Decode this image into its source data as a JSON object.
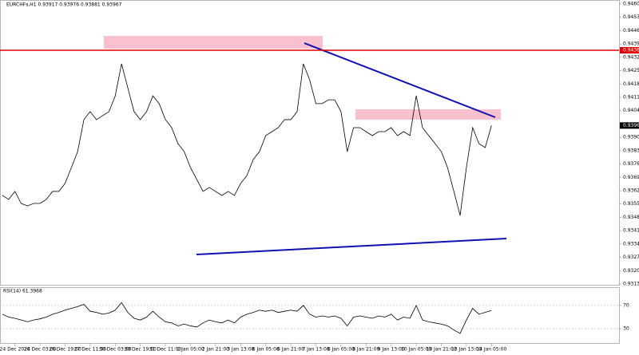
{
  "chart_data": [
    {
      "type": "line",
      "title": "EURCHFs,H1 0.93917 0.93976 0.93881 0.93967",
      "color": "#000000",
      "categories": [
        null,
        null,
        "24 Dec 2024",
        null,
        null,
        null,
        "26 Dec 03:00",
        null,
        null,
        null,
        "26 Dec 19:00",
        null,
        null,
        null,
        "27 Dec 11:00",
        null,
        null,
        null,
        "30 Dec 03:00",
        null,
        null,
        null,
        "30 Dec 19:00",
        null,
        null,
        null,
        "31 Dec 11:00",
        null,
        null,
        null,
        "2 Jan 05:00",
        null,
        null,
        null,
        "2 Jan 21:00",
        null,
        null,
        null,
        "3 Jan 13:00",
        null,
        null,
        null,
        "6 Jan 05:00",
        null,
        null,
        null,
        "6 Jan 21:00",
        null,
        null,
        null,
        "7 Jan 13:00",
        null,
        null,
        null,
        "8 Jan 05:00",
        null,
        null,
        null,
        "8 Jan 21:00",
        null,
        null,
        null,
        "9 Jan 13:00",
        null,
        null,
        null,
        "10 Jan 05:00",
        null,
        null,
        null,
        "10 Jan 21:00",
        null,
        null,
        null,
        "13 Jan 13:00",
        null,
        null,
        null,
        "14 Jan 05:00"
      ],
      "values": [
        0.936,
        0.93579,
        0.93621,
        0.93558,
        0.93545,
        0.93558,
        0.93558,
        0.93579,
        0.93621,
        0.93621,
        0.93663,
        0.93746,
        0.9383,
        0.93998,
        0.9404,
        0.93998,
        0.94019,
        0.9404,
        0.94123,
        0.94291,
        0.94165,
        0.9404,
        0.93998,
        0.9404,
        0.94123,
        0.94082,
        0.93998,
        0.93956,
        0.93872,
        0.9383,
        0.93746,
        0.93684,
        0.93621,
        0.93642,
        0.93621,
        0.936,
        0.93621,
        0.936,
        0.93663,
        0.93705,
        0.93788,
        0.9383,
        0.93914,
        0.93935,
        0.93956,
        0.93998,
        0.93998,
        0.9404,
        0.94291,
        0.94207,
        0.94082,
        0.94082,
        0.94102,
        0.94102,
        0.9404,
        0.9383,
        0.93956,
        0.93956,
        0.93935,
        0.93914,
        0.93935,
        0.93935,
        0.93956,
        0.93914,
        0.93935,
        0.93914,
        0.94123,
        0.93956,
        0.93914,
        0.93872,
        0.9383,
        0.93746,
        0.93621,
        0.93495,
        0.93746,
        0.93956,
        0.93872,
        0.93851,
        0.93967
      ],
      "ylim": [
        0.93135,
        0.94605
      ],
      "yticks": [
        0.94605,
        0.94535,
        0.94465,
        0.94395,
        0.94325,
        0.94255,
        0.94185,
        0.94115,
        0.94045,
        0.93905,
        0.93835,
        0.93765,
        0.93695,
        0.93625,
        0.93555,
        0.93485,
        0.93415,
        0.93345,
        0.93275,
        0.93205,
        0.93135
      ],
      "level": 0.94362,
      "level_color": "#e00000",
      "last_price": 0.93967
    },
    {
      "type": "line",
      "title": "RSI(14) 61.3968",
      "color": "#000000",
      "values": [
        55,
        50,
        48,
        45,
        42,
        45,
        47,
        50,
        55,
        58,
        62,
        65,
        68,
        72,
        60,
        58,
        55,
        57,
        62,
        75,
        58,
        48,
        45,
        50,
        60,
        50,
        42,
        40,
        35,
        38,
        35,
        33,
        40,
        45,
        42,
        40,
        45,
        40,
        50,
        55,
        58,
        62,
        60,
        62,
        58,
        60,
        62,
        60,
        70,
        55,
        50,
        52,
        50,
        52,
        48,
        35,
        50,
        52,
        50,
        48,
        52,
        50,
        55,
        45,
        50,
        48,
        70,
        45,
        42,
        40,
        38,
        35,
        28,
        22,
        45,
        65,
        55,
        58,
        61.3968
      ],
      "ylim": [
        0,
        100
      ],
      "yticks": [
        70,
        30
      ]
    }
  ]
}
